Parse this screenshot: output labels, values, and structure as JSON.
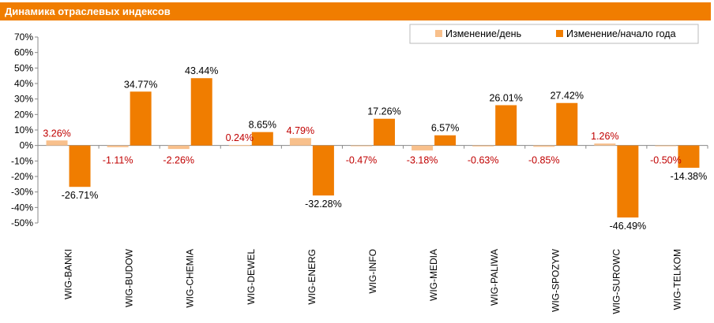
{
  "header": {
    "title": "Динамика отраслевых индексов"
  },
  "colors": {
    "day": "#f8c08c",
    "ytd": "#f07d00",
    "title_bar": "#f07d00",
    "day_label": "#c00000"
  },
  "chart_data": {
    "type": "bar",
    "ylim": [
      -50,
      70
    ],
    "yticks": [
      70,
      60,
      50,
      40,
      30,
      20,
      10,
      0,
      -10,
      -20,
      -30,
      -40,
      -50
    ],
    "ytick_labels": [
      "70%",
      "60%",
      "50%",
      "40%",
      "30%",
      "20%",
      "10%",
      "0%",
      "-10%",
      "-20%",
      "-30%",
      "-40%",
      "-50%"
    ],
    "legend_position": "top-right",
    "categories": [
      "WIG-BANKI",
      "WIG-BUDOW",
      "WIG-CHEMIA",
      "WIG-DEWEL",
      "WIG-ENERG",
      "WIG-INFO",
      "WIG-MEDIA",
      "WIG-PALIWA",
      "WIG-SPOZYW",
      "WIG-SUROWC",
      "WIG-TELKOM"
    ],
    "series": [
      {
        "name": "Изменение/день",
        "values": [
          3.26,
          -1.11,
          -2.26,
          0.24,
          4.79,
          -0.47,
          -3.18,
          -0.63,
          -0.85,
          1.26,
          -0.5
        ],
        "labels": [
          "3.26%",
          "-1.11%",
          "-2.26%",
          "0.24%",
          "4.79%",
          "-0.47%",
          "-3.18%",
          "-0.63%",
          "-0.85%",
          "1.26%",
          "-0.50%"
        ]
      },
      {
        "name": "Изменение/начало года",
        "values": [
          -26.71,
          34.77,
          43.44,
          8.65,
          -32.28,
          17.26,
          6.57,
          26.01,
          27.42,
          -46.49,
          -14.38
        ],
        "labels": [
          "-26.71%",
          "34.77%",
          "43.44%",
          "8.65%",
          "-32.28%",
          "17.26%",
          "6.57%",
          "26.01%",
          "27.42%",
          "-46.49%",
          "-14.38%"
        ]
      }
    ]
  }
}
